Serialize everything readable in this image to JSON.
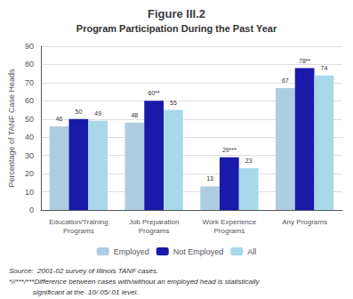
{
  "chart_data": {
    "type": "bar",
    "title": "Figure III.2",
    "subtitle": "Program Participation During the Past Year",
    "categories": [
      "Education/Training\nPrograms",
      "Job Preparation\nPrograms",
      "Work Experience\nPrograms",
      "Any Programs"
    ],
    "series": [
      {
        "name": "Employed",
        "color": "#aecde0",
        "values": [
          46,
          48,
          13,
          67
        ],
        "value_labels": [
          "46",
          "48",
          "13",
          "67"
        ]
      },
      {
        "name": "Not Employed",
        "color": "#1a1aaa",
        "values": [
          50,
          60,
          29,
          78
        ],
        "value_labels": [
          "50",
          "60**",
          "29***",
          "78**"
        ]
      },
      {
        "name": "All",
        "color": "#a8d8ea",
        "values": [
          49,
          55,
          23,
          74
        ],
        "value_labels": [
          "49",
          "55",
          "23",
          "74"
        ]
      }
    ],
    "ylabel": "Percentage of TANF Case Heads",
    "ylim": [
      0,
      90
    ],
    "yticks": [
      0,
      10,
      20,
      30,
      40,
      50,
      60,
      70,
      80,
      90
    ],
    "grid": true,
    "legend": "bottom",
    "data_labels": true,
    "annotations": [
      "Source:  2001-02 survey of Illinois TANF cases.",
      "*//***/***Difference between cases with/without an employed head is statistically",
      "            significant at the .10/.05/.01 level."
    ]
  }
}
